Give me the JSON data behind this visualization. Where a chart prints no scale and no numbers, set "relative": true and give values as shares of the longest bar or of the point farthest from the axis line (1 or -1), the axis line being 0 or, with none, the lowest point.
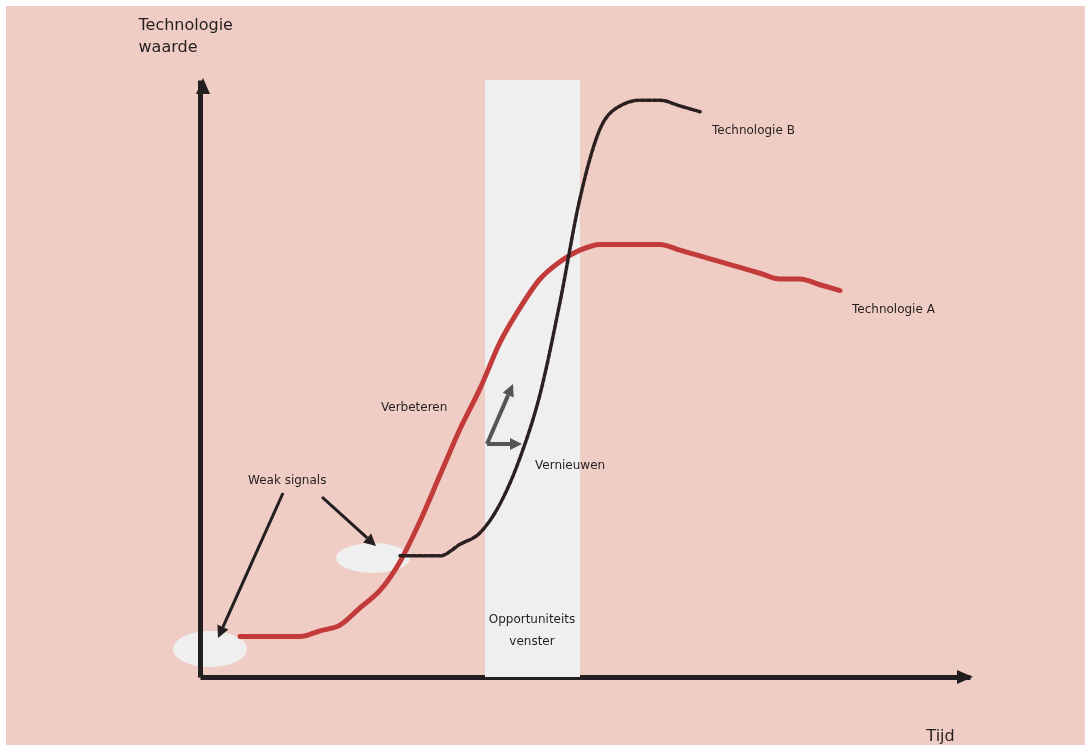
{
  "chart_data": {
    "type": "line",
    "relative": true,
    "xlabel": "Tijd",
    "ylabel": "Technologie waarde",
    "categories": [
      null,
      null,
      null,
      null,
      null,
      null,
      null,
      null,
      null,
      null,
      null,
      null,
      null,
      null,
      null,
      null,
      null,
      null,
      null,
      null,
      null,
      null,
      null,
      null,
      null,
      null,
      null,
      null,
      null,
      null,
      null,
      null,
      null,
      null,
      null,
      null,
      null,
      null,
      null
    ],
    "series": [
      {
        "name": "Technologie A",
        "color": "#c23b3a",
        "line_style": "solid",
        "values": [
          null,
          null,
          0.07,
          0.07,
          0.07,
          0.07,
          0.08,
          0.09,
          0.12,
          0.15,
          0.2,
          0.27,
          0.35,
          0.43,
          0.5,
          0.58,
          0.64,
          0.69,
          0.72,
          0.74,
          0.75,
          0.75,
          0.75,
          0.75,
          0.74,
          0.73,
          0.72,
          0.71,
          0.7,
          0.69,
          0.69,
          0.68,
          0.67,
          null,
          null,
          null,
          null,
          null,
          null
        ]
      },
      {
        "name": "Technologie B",
        "color": "#2a2020",
        "line_style": "dashed",
        "values": [
          null,
          null,
          null,
          null,
          null,
          null,
          null,
          null,
          null,
          null,
          0.21,
          0.21,
          0.21,
          0.23,
          0.25,
          0.3,
          0.38,
          0.49,
          0.65,
          0.83,
          0.95,
          0.99,
          1.0,
          1.0,
          0.99,
          0.98,
          null,
          null,
          null,
          null,
          null,
          null,
          null,
          null,
          null,
          null,
          null,
          null,
          null
        ]
      }
    ],
    "annotations": [
      "Weak signals",
      "Verbeteren",
      "Vernieuwen",
      "Opportuniteits venster"
    ]
  }
}
